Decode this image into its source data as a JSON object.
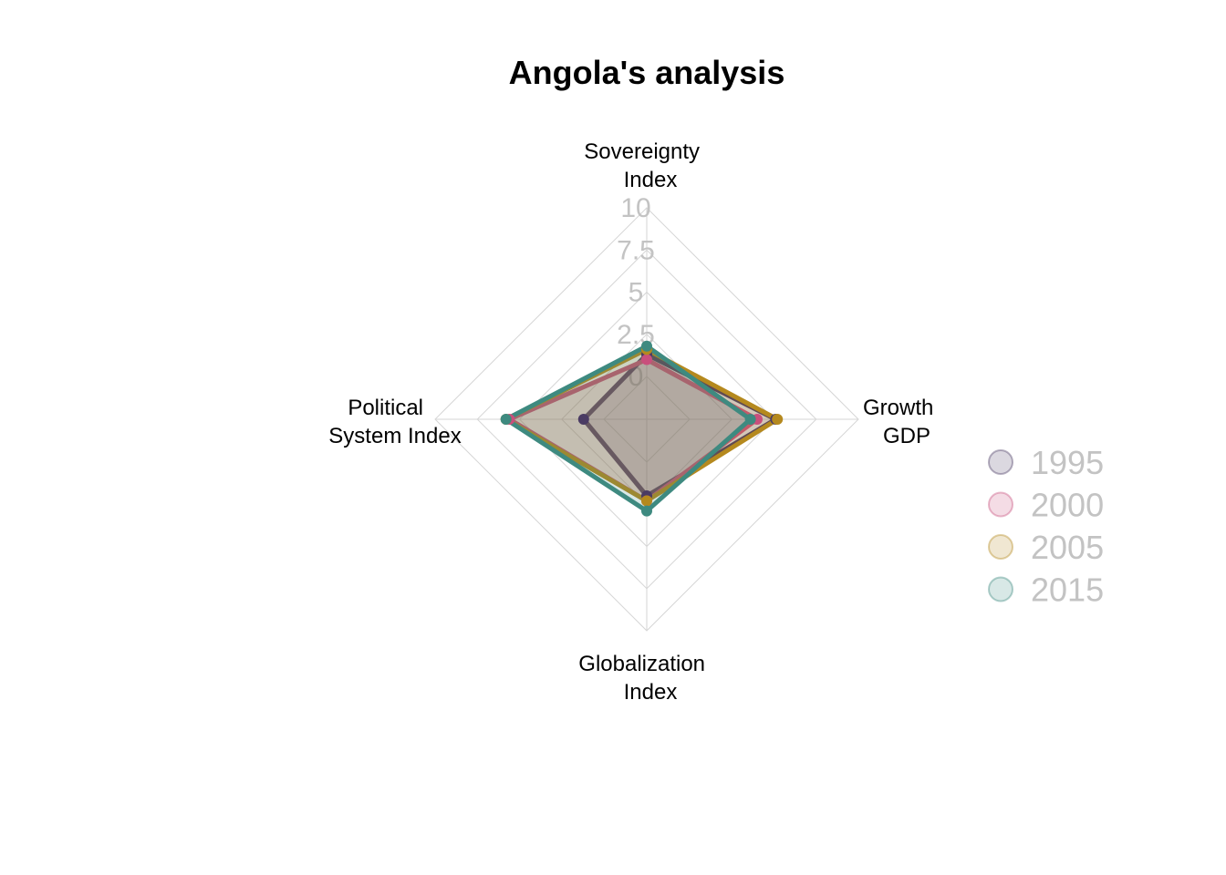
{
  "chart_data": {
    "type": "radar",
    "title": "Angola's analysis",
    "axes": [
      [
        "Sovereignty",
        "Index"
      ],
      [
        "Growth",
        "GDP"
      ],
      [
        "Globalization",
        "Index"
      ],
      [
        "Political",
        "System Index"
      ]
    ],
    "ticks": [
      "0",
      "2.5",
      "5",
      "7.5",
      "10"
    ],
    "range": [
      0,
      10
    ],
    "grid": true,
    "legend_position": "right",
    "series": [
      {
        "name": "1995",
        "color": "#4a3b63",
        "values": [
          1.3,
          5.1,
          2.0,
          1.2
        ]
      },
      {
        "name": "2000",
        "color": "#c94f7c",
        "values": [
          1.0,
          4.0,
          2.3,
          5.6
        ]
      },
      {
        "name": "2005",
        "color": "#b5891e",
        "values": [
          1.6,
          5.2,
          2.3,
          5.8
        ]
      },
      {
        "name": "2015",
        "color": "#3e8a80",
        "values": [
          1.8,
          3.6,
          2.9,
          5.8
        ]
      }
    ]
  }
}
